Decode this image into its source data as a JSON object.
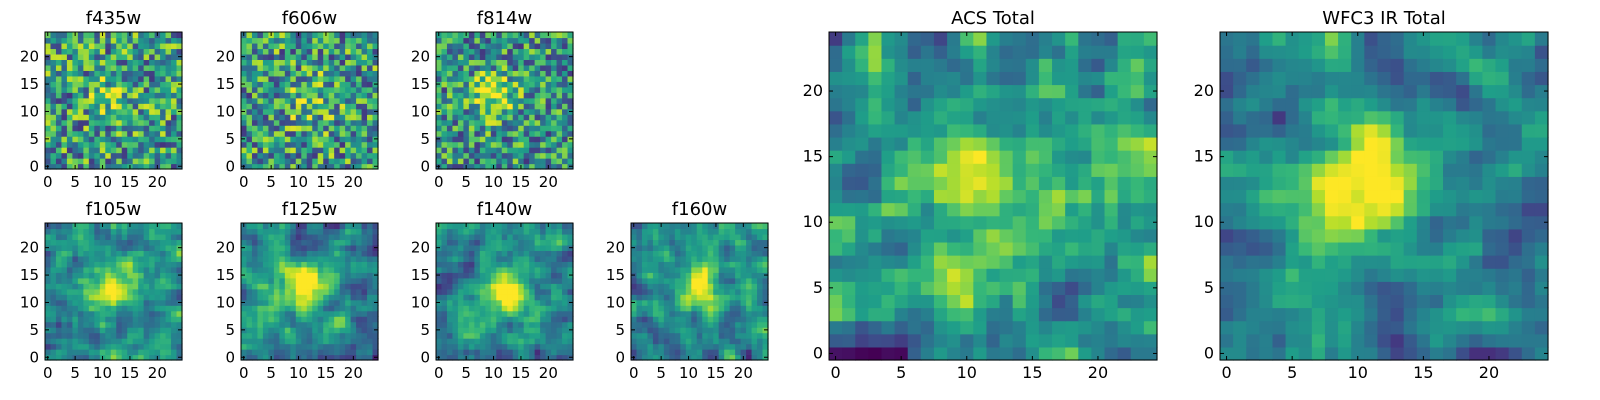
{
  "chart_data": [
    {
      "type": "heatmap",
      "title": "f435w",
      "xticks": [
        "0",
        "5",
        "10",
        "15",
        "20"
      ],
      "yticks": [
        "0",
        "5",
        "10",
        "15",
        "20"
      ],
      "xlim": [
        -0.5,
        24.5
      ],
      "ylim": [
        -0.5,
        24.5
      ],
      "grid_size": 25,
      "colormap": "viridis",
      "seed": 11,
      "peak": [
        12,
        13
      ],
      "amplitude": 0.25
    },
    {
      "type": "heatmap",
      "title": "f606w",
      "xticks": [
        "0",
        "5",
        "10",
        "15",
        "20"
      ],
      "yticks": [
        "0",
        "5",
        "10",
        "15",
        "20"
      ],
      "xlim": [
        -0.5,
        24.5
      ],
      "ylim": [
        -0.5,
        24.5
      ],
      "grid_size": 25,
      "colormap": "viridis",
      "seed": 23,
      "peak": [
        12,
        12
      ],
      "amplitude": 0.25
    },
    {
      "type": "heatmap",
      "title": "f814w",
      "xticks": [
        "0",
        "5",
        "10",
        "15",
        "20"
      ],
      "yticks": [
        "0",
        "5",
        "10",
        "15",
        "20"
      ],
      "xlim": [
        -0.5,
        24.5
      ],
      "ylim": [
        -0.5,
        24.5
      ],
      "grid_size": 25,
      "colormap": "viridis",
      "seed": 37,
      "peak": [
        10,
        13
      ],
      "amplitude": 0.45
    },
    {
      "type": "heatmap",
      "title": "f105w",
      "xticks": [
        "0",
        "5",
        "10",
        "15",
        "20"
      ],
      "yticks": [
        "0",
        "5",
        "10",
        "15",
        "20"
      ],
      "xlim": [
        -0.5,
        24.5
      ],
      "ylim": [
        -0.5,
        24.5
      ],
      "grid_size": 25,
      "colormap": "viridis",
      "seed": 41,
      "peak": [
        12,
        13
      ],
      "amplitude": 0.65
    },
    {
      "type": "heatmap",
      "title": "f125w",
      "xticks": [
        "0",
        "5",
        "10",
        "15",
        "20"
      ],
      "yticks": [
        "0",
        "5",
        "10",
        "15",
        "20"
      ],
      "xlim": [
        -0.5,
        24.5
      ],
      "ylim": [
        -0.5,
        24.5
      ],
      "grid_size": 25,
      "colormap": "viridis",
      "seed": 53,
      "peak": [
        11,
        13
      ],
      "amplitude": 0.7
    },
    {
      "type": "heatmap",
      "title": "f140w",
      "xticks": [
        "0",
        "5",
        "10",
        "15",
        "20"
      ],
      "yticks": [
        "0",
        "5",
        "10",
        "15",
        "20"
      ],
      "xlim": [
        -0.5,
        24.5
      ],
      "ylim": [
        -0.5,
        24.5
      ],
      "grid_size": 25,
      "colormap": "viridis",
      "seed": 67,
      "peak": [
        12,
        12
      ],
      "amplitude": 0.7
    },
    {
      "type": "heatmap",
      "title": "f160w",
      "xticks": [
        "0",
        "5",
        "10",
        "15",
        "20"
      ],
      "yticks": [
        "0",
        "5",
        "10",
        "15",
        "20"
      ],
      "xlim": [
        -0.5,
        24.5
      ],
      "ylim": [
        -0.5,
        24.5
      ],
      "grid_size": 25,
      "colormap": "viridis",
      "seed": 79,
      "peak": [
        12,
        13
      ],
      "amplitude": 0.65
    },
    {
      "type": "heatmap",
      "title": "ACS Total",
      "xticks": [
        "0",
        "5",
        "10",
        "15",
        "20"
      ],
      "yticks": [
        "0",
        "5",
        "10",
        "15",
        "20"
      ],
      "xlim": [
        -0.5,
        24.5
      ],
      "ylim": [
        -0.5,
        24.5
      ],
      "grid_size": 25,
      "colormap": "viridis",
      "seed": 97,
      "peak": [
        11,
        13
      ],
      "amplitude": 0.35
    },
    {
      "type": "heatmap",
      "title": "WFC3 IR Total",
      "xticks": [
        "0",
        "5",
        "10",
        "15",
        "20"
      ],
      "yticks": [
        "0",
        "5",
        "10",
        "15",
        "20"
      ],
      "xlim": [
        -0.5,
        24.5
      ],
      "ylim": [
        -0.5,
        24.5
      ],
      "grid_size": 25,
      "colormap": "viridis",
      "seed": 101,
      "peak": [
        11,
        13
      ],
      "amplitude": 0.85
    }
  ]
}
